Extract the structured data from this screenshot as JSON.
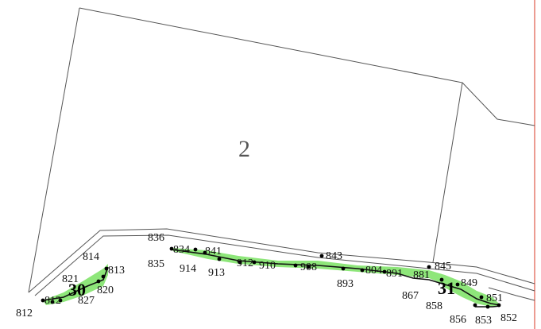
{
  "map": {
    "parcel_label": "2",
    "zone_labels": [
      "30",
      "31"
    ],
    "point_labels": [
      "812",
      "812",
      "827",
      "821",
      "820",
      "814",
      "813",
      "836",
      "834",
      "841",
      "835",
      "914",
      "913",
      "912",
      "910",
      "908",
      "843",
      "893",
      "804",
      "891",
      "881",
      "845",
      "849",
      "867",
      "858",
      "851",
      "856",
      "853",
      "852"
    ],
    "colors": {
      "strip_fill": "#8ee67a",
      "parcel_line": "#555555",
      "right_border": "#e05a4a"
    }
  }
}
